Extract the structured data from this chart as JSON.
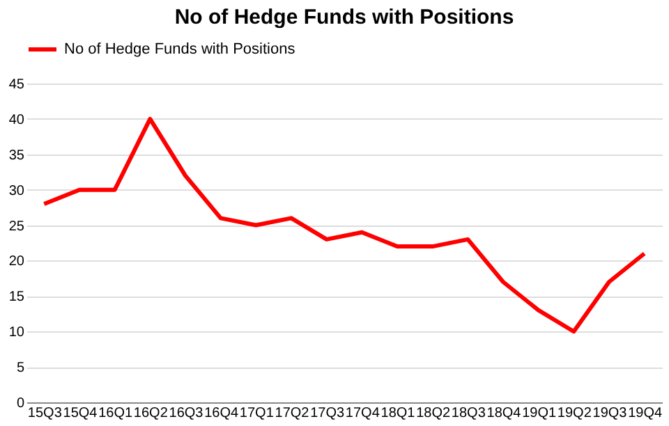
{
  "chart_data": {
    "type": "line",
    "title": "No of Hedge Funds with Positions",
    "categories": [
      "15Q3",
      "15Q4",
      "16Q1",
      "16Q2",
      "16Q3",
      "16Q4",
      "17Q1",
      "17Q2",
      "17Q3",
      "17Q4",
      "18Q1",
      "18Q2",
      "18Q3",
      "18Q4",
      "19Q1",
      "19Q2",
      "19Q3",
      "19Q4"
    ],
    "series": [
      {
        "name": "No of Hedge Funds with Positions",
        "color": "#ff0000",
        "values": [
          28,
          30,
          30,
          40,
          32,
          26,
          25,
          26,
          23,
          24,
          22,
          22,
          23,
          17,
          13,
          10,
          17,
          21
        ]
      }
    ],
    "ylim": [
      0,
      45
    ],
    "yticks": [
      0,
      5,
      10,
      15,
      20,
      25,
      30,
      35,
      40,
      45
    ],
    "grid": "y",
    "legend": "top",
    "marker": "none",
    "line_style": "solid"
  }
}
